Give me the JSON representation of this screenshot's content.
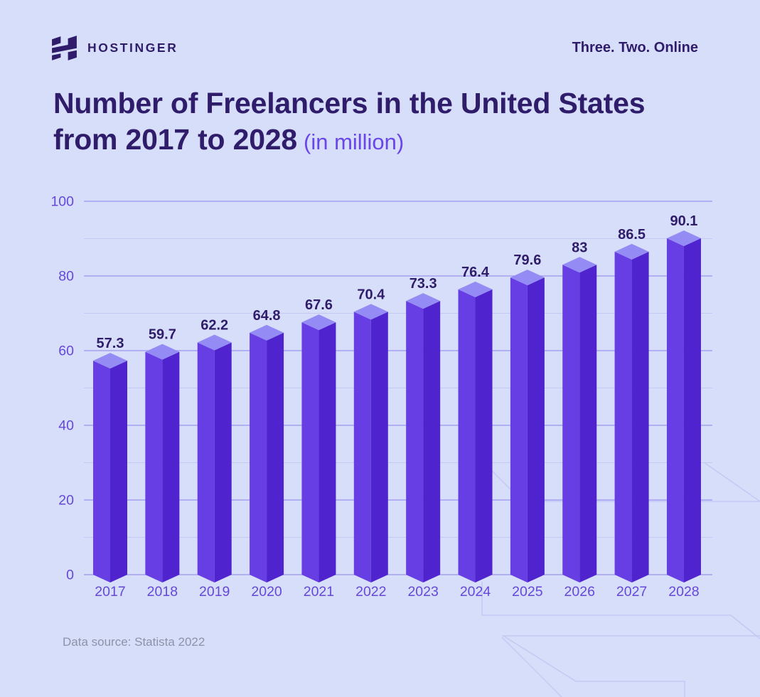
{
  "header": {
    "brand": "HOSTINGER",
    "tagline": "Three. Two. Online"
  },
  "title": {
    "line1": "Number of Freelancers in the United States",
    "line2": "from 2017 to 2028",
    "suffix": "(in million)"
  },
  "source": "Data source: Statista 2022",
  "colors": {
    "background": "#d7defa",
    "ink": "#2f1c6a",
    "accent_purple": "#6a45e8",
    "axis_text": "#6548d8",
    "bar_left_face": "#673ee3",
    "bar_right_face": "#4f23cd",
    "bar_top_face": "#948cf4",
    "grid_major": "#9c95ee",
    "grid_minor": "#c4c9f4",
    "source_text": "#8e92a8",
    "watermark": "#c3c9f3",
    "logo": "#2f1c6a"
  },
  "chart_data": {
    "type": "bar",
    "style": "3d-column",
    "title": "Number of Freelancers in the United States from 2017 to 2028 (in million)",
    "categories": [
      "2017",
      "2018",
      "2019",
      "2020",
      "2021",
      "2022",
      "2023",
      "2024",
      "2025",
      "2026",
      "2027",
      "2028"
    ],
    "values": [
      57.3,
      59.7,
      62.2,
      64.8,
      67.6,
      70.4,
      73.3,
      76.4,
      79.6,
      83,
      86.5,
      90.1
    ],
    "value_labels": [
      "57.3",
      "59.7",
      "62.2",
      "64.8",
      "67.6",
      "70.4",
      "73.3",
      "76.4",
      "79.6",
      "83",
      "86.5",
      "90.1"
    ],
    "xlabel": "",
    "ylabel": "",
    "ylim": [
      0,
      100
    ],
    "ytick_major": [
      0,
      20,
      40,
      60,
      80,
      100
    ],
    "ytick_minor": [
      10,
      30,
      50,
      70,
      90
    ],
    "grid": true,
    "legend": false,
    "data_source": "Statista 2022"
  }
}
